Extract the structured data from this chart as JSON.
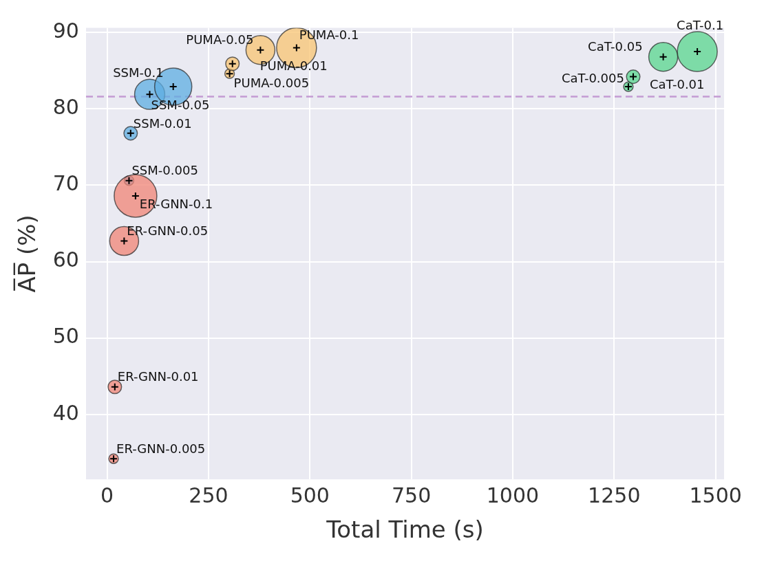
{
  "chart_data": {
    "type": "bubble",
    "xlabel": "Total Time (s)",
    "ylabel": "A̅P̅ (%)",
    "xlim": [
      -52,
      1521
    ],
    "ylim": [
      31.5,
      90.6
    ],
    "xticks": [
      0,
      250,
      500,
      750,
      1000,
      1250,
      1500
    ],
    "yticks": [
      40,
      50,
      60,
      70,
      80,
      90
    ],
    "grid": true,
    "legend": false,
    "series": [
      {
        "color": "#f08476",
        "x": [
          16,
          19,
          42,
          70
        ],
        "values": [
          34.2,
          43.6,
          62.7,
          68.6
        ],
        "sizes": [
          0.05,
          0.1,
          0.46,
          1
        ]
      },
      {
        "color": "#5dade2",
        "x": [
          54,
          58,
          105,
          163
        ],
        "values": [
          70.6,
          76.8,
          81.9,
          82.9
        ],
        "sizes": [
          0.05,
          0.1,
          0.5,
          0.76
        ]
      },
      {
        "color": "#f8c471",
        "x": [
          302,
          309,
          378,
          467
        ],
        "values": [
          84.6,
          85.9,
          87.7,
          88.0
        ],
        "sizes": [
          0.05,
          0.1,
          0.46,
          0.875
        ]
      },
      {
        "color": "#58d68d",
        "x": [
          1285,
          1297,
          1371,
          1455
        ],
        "values": [
          82.9,
          84.2,
          86.8,
          87.5
        ],
        "sizes": [
          0.05,
          0.1,
          0.46,
          0.875
        ]
      }
    ],
    "ref_lines": [
      {
        "axis": "y",
        "value": 81.6,
        "color": "#c39bd3",
        "line_style": "dashed"
      }
    ],
    "annotations": [
      {
        "text": "ER-GNN-0.005",
        "x": 16,
        "y": 34.2
      },
      {
        "text": "ER-GNN-0.01",
        "x": 19,
        "y": 43.6
      },
      {
        "text": "ER-GNN-0.05",
        "x": 42,
        "y": 62.7
      },
      {
        "text": "ER-GNN-0.1",
        "x": 70,
        "y": 68.6
      },
      {
        "text": "SSM-0.005",
        "x": 54,
        "y": 70.6
      },
      {
        "text": "SSM-0.01",
        "x": 58,
        "y": 76.8
      },
      {
        "text": "SSM-0.05",
        "x": 105,
        "y": 81.9
      },
      {
        "text": "SSM-0.1",
        "x": 163,
        "y": 82.9
      },
      {
        "text": "PUMA-0.005",
        "x": 302,
        "y": 84.6
      },
      {
        "text": "PUMA-0.01",
        "x": 309,
        "y": 85.9
      },
      {
        "text": "PUMA-0.05",
        "x": 378,
        "y": 87.7
      },
      {
        "text": "PUMA-0.1",
        "x": 467,
        "y": 88.0
      },
      {
        "text": "CaT-0.005",
        "x": 1285,
        "y": 82.9
      },
      {
        "text": "CaT-0.01",
        "x": 1297,
        "y": 84.2
      },
      {
        "text": "CaT-0.05",
        "x": 1371,
        "y": 86.8
      },
      {
        "text": "CaT-0.1",
        "x": 1455,
        "y": 87.5
      }
    ]
  }
}
